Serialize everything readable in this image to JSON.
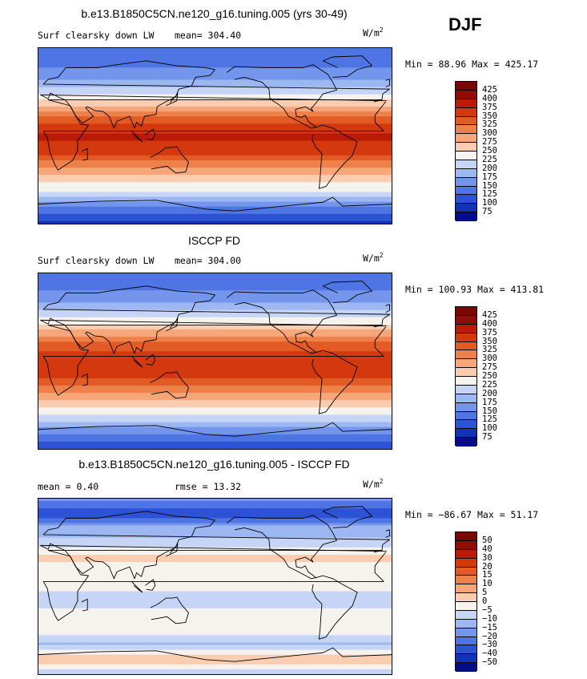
{
  "season": "DJF",
  "units_base": "W/m",
  "units_exp": "2",
  "chart_data": [
    {
      "type": "heatmap",
      "title": "b.e13.B1850C5CN.ne120_g16.tuning.005 (yrs 30-49)",
      "variable_label": "Surf clearsky down LW",
      "mean_label": "mean= 304.40",
      "minmax_label": "Min =  88.96 Max = 425.17",
      "min": 88.96,
      "max": 425.17,
      "mean": 304.4,
      "levels": [
        "425",
        "400",
        "375",
        "350",
        "325",
        "300",
        "275",
        "250",
        "225",
        "200",
        "175",
        "150",
        "125",
        "100",
        "75"
      ],
      "colors": [
        "#8e0d04",
        "#b91b08",
        "#d4380f",
        "#e25b24",
        "#ee8049",
        "#f7a679",
        "#fbcdb0",
        "#f6f3ee",
        "#c6d5f5",
        "#9cb7f2",
        "#7396ec",
        "#4f74e4",
        "#2d52d6",
        "#1232b8",
        "#030c8a"
      ],
      "profile": [
        {
          "lat": 90,
          "value": 150
        },
        {
          "lat": 75,
          "value": 165
        },
        {
          "lat": 60,
          "value": 195
        },
        {
          "lat": 45,
          "value": 245
        },
        {
          "lat": 30,
          "value": 300
        },
        {
          "lat": 15,
          "value": 370
        },
        {
          "lat": 0,
          "value": 405
        },
        {
          "lat": -15,
          "value": 390
        },
        {
          "lat": -30,
          "value": 335
        },
        {
          "lat": -45,
          "value": 285
        },
        {
          "lat": -60,
          "value": 240
        },
        {
          "lat": -75,
          "value": 165
        },
        {
          "lat": -90,
          "value": 115
        }
      ]
    },
    {
      "type": "heatmap",
      "title": "ISCCP FD",
      "variable_label": "Surf clearsky down LW",
      "mean_label": "mean= 304.00",
      "minmax_label": "Min = 100.93 Max = 413.81",
      "min": 100.93,
      "max": 413.81,
      "mean": 304.0,
      "levels": [
        "425",
        "400",
        "375",
        "350",
        "325",
        "300",
        "275",
        "250",
        "225",
        "200",
        "175",
        "150",
        "125",
        "100",
        "75"
      ],
      "colors": [
        "#8e0d04",
        "#b91b08",
        "#d4380f",
        "#e25b24",
        "#ee8049",
        "#f7a679",
        "#fbcdb0",
        "#f6f3ee",
        "#c6d5f5",
        "#9cb7f2",
        "#7396ec",
        "#4f74e4",
        "#2d52d6",
        "#1232b8",
        "#030c8a"
      ],
      "profile": [
        {
          "lat": 90,
          "value": 155
        },
        {
          "lat": 75,
          "value": 170
        },
        {
          "lat": 60,
          "value": 200
        },
        {
          "lat": 45,
          "value": 250
        },
        {
          "lat": 30,
          "value": 305
        },
        {
          "lat": 15,
          "value": 365
        },
        {
          "lat": 0,
          "value": 395
        },
        {
          "lat": -15,
          "value": 385
        },
        {
          "lat": -30,
          "value": 330
        },
        {
          "lat": -45,
          "value": 280
        },
        {
          "lat": -60,
          "value": 235
        },
        {
          "lat": -75,
          "value": 170
        },
        {
          "lat": -90,
          "value": 125
        }
      ]
    },
    {
      "type": "heatmap",
      "title": "b.e13.B1850C5CN.ne120_g16.tuning.005 - ISCCP FD",
      "mean_label": "mean =   0.40",
      "rmse_label": "rmse =  13.32",
      "minmax_label": "Min = −86.67 Max =  51.17",
      "min": -86.67,
      "max": 51.17,
      "mean": 0.4,
      "rmse": 13.32,
      "levels": [
        "50",
        "40",
        "30",
        "20",
        "15",
        "10",
        "5",
        "0",
        "−5",
        "−10",
        "−15",
        "−20",
        "−30",
        "−40",
        "−50"
      ],
      "colors": [
        "#8e0d04",
        "#b91b08",
        "#d4380f",
        "#e25b24",
        "#ee8049",
        "#f7a679",
        "#fbcdb0",
        "#f6f3ee",
        "#c6d5f5",
        "#9cb7f2",
        "#7396ec",
        "#4f74e4",
        "#2d52d6",
        "#1232b8",
        "#030c8a"
      ],
      "profile": [
        {
          "lat": 90,
          "value": -12
        },
        {
          "lat": 75,
          "value": -25
        },
        {
          "lat": 60,
          "value": -8
        },
        {
          "lat": 45,
          "value": -4
        },
        {
          "lat": 30,
          "value": 6
        },
        {
          "lat": 15,
          "value": 3
        },
        {
          "lat": 0,
          "value": 2
        },
        {
          "lat": -15,
          "value": -5
        },
        {
          "lat": -30,
          "value": 4
        },
        {
          "lat": -45,
          "value": 3
        },
        {
          "lat": -60,
          "value": -6
        },
        {
          "lat": -75,
          "value": 10
        },
        {
          "lat": -90,
          "value": -4
        }
      ]
    }
  ]
}
